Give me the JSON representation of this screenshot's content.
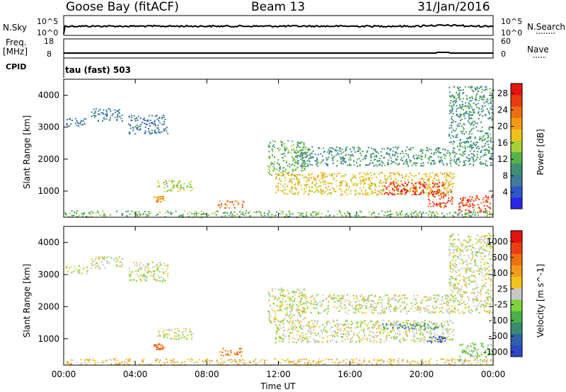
{
  "header": {
    "station": "Goose Bay (fitACF)",
    "beam": "Beam 13",
    "date": "31/Jan/2016"
  },
  "top_panels": {
    "nsky_label": "N.Sky",
    "nsky_ticks": [
      "10^5",
      "10^0"
    ],
    "nsearch_label": "N.Search",
    "nsearch_ticks": [
      "10^5",
      "10^0"
    ],
    "freq_label": "Freq.",
    "freq_unit": "[MHz]",
    "freq_ticks": [
      "18",
      "8"
    ],
    "nave_label": "Nave",
    "nave_ticks": [
      "60",
      "0"
    ],
    "cpid_label": "CPID",
    "cpid_value": "tau (fast) 503"
  },
  "chart_data": [
    {
      "type": "heatmap",
      "title": "",
      "ylabel": "Slant Range [km]",
      "xlabel": "",
      "ylim": [
        180,
        4500
      ],
      "yticks": [
        1000,
        2000,
        3000,
        4000
      ],
      "xlim": [
        0,
        24
      ],
      "colorbar": {
        "label": "Power [dB]",
        "ticks": [
          "4",
          "8",
          "12",
          "16",
          "20",
          "24",
          "28"
        ],
        "colors": [
          "#2b27e8",
          "#2f56c8",
          "#3d7d9a",
          "#3f9070",
          "#57b24b",
          "#a7cf37",
          "#f1c21b",
          "#f19b15",
          "#ef6d12",
          "#ea3a10",
          "#e4140e"
        ]
      },
      "scatter_regions": [
        {
          "t": [
            0.1,
            1.3
          ],
          "r": [
            3050,
            3300
          ],
          "level": 2
        },
        {
          "t": [
            1.5,
            3.3
          ],
          "r": [
            3200,
            3600
          ],
          "level": 2
        },
        {
          "t": [
            3.6,
            5.8
          ],
          "r": [
            2800,
            3400
          ],
          "level": 2
        },
        {
          "t": [
            5.2,
            7.2
          ],
          "r": [
            1000,
            1350
          ],
          "level": 5
        },
        {
          "t": [
            5.0,
            5.6
          ],
          "r": [
            680,
            860
          ],
          "level": 7
        },
        {
          "t": [
            8.6,
            10.1
          ],
          "r": [
            480,
            720
          ],
          "level": 8
        },
        {
          "t": [
            11.4,
            13.5
          ],
          "r": [
            1500,
            2600
          ],
          "level": 4
        },
        {
          "t": [
            11.8,
            21.8
          ],
          "r": [
            900,
            1600
          ],
          "level": 6
        },
        {
          "t": [
            17.8,
            21.2
          ],
          "r": [
            900,
            1300
          ],
          "level": 10
        },
        {
          "t": [
            13.0,
            21.5
          ],
          "r": [
            1800,
            2400
          ],
          "level": 3
        },
        {
          "t": [
            20.3,
            21.8
          ],
          "r": [
            500,
            1000
          ],
          "level": 9
        },
        {
          "t": [
            21.5,
            24.0
          ],
          "r": [
            1800,
            4300
          ],
          "level": 3
        },
        {
          "t": [
            22.0,
            24.0
          ],
          "r": [
            300,
            900
          ],
          "level": 9
        },
        {
          "t": [
            0.0,
            24.0
          ],
          "r": [
            200,
            400
          ],
          "level": 4
        }
      ],
      "xticks": [
        "00:00",
        "04:00",
        "08:00",
        "12:00",
        "16:00",
        "20:00",
        "00:00"
      ]
    },
    {
      "type": "heatmap",
      "title": "",
      "ylabel": "Slant Range [km]",
      "xlabel": "Time UT",
      "ylim": [
        180,
        4500
      ],
      "yticks": [
        1000,
        2000,
        3000,
        4000
      ],
      "xlim": [
        0,
        24
      ],
      "colorbar": {
        "label": "Velocity [m s^-1]",
        "ticks": [
          "1000",
          "500",
          "100",
          "25",
          "-25",
          "-100",
          "-500",
          "-1000"
        ],
        "colors": [
          "#2f46c8",
          "#2d62a8",
          "#3a8a72",
          "#48b046",
          "#7fd23a",
          "#c8c8c8",
          "#f2c21e",
          "#f29a1a",
          "#ef6f14",
          "#ea3e10",
          "#e4120e"
        ]
      },
      "scatter_regions": [
        {
          "t": [
            0.1,
            1.3
          ],
          "r": [
            3050,
            3300
          ],
          "level": 5
        },
        {
          "t": [
            1.5,
            3.3
          ],
          "r": [
            3200,
            3600
          ],
          "level": 5
        },
        {
          "t": [
            3.6,
            5.8
          ],
          "r": [
            2800,
            3400
          ],
          "level": 5
        },
        {
          "t": [
            5.2,
            7.2
          ],
          "r": [
            1000,
            1350
          ],
          "level": 5
        },
        {
          "t": [
            5.0,
            5.6
          ],
          "r": [
            680,
            860
          ],
          "level": 8
        },
        {
          "t": [
            8.6,
            10.1
          ],
          "r": [
            480,
            720
          ],
          "level": 8
        },
        {
          "t": [
            11.4,
            13.5
          ],
          "r": [
            1500,
            2600
          ],
          "level": 5
        },
        {
          "t": [
            11.8,
            21.8
          ],
          "r": [
            900,
            1600
          ],
          "level": 5
        },
        {
          "t": [
            17.8,
            21.2
          ],
          "r": [
            1300,
            1500
          ],
          "level": 2
        },
        {
          "t": [
            13.0,
            21.5
          ],
          "r": [
            1800,
            2400
          ],
          "level": 5
        },
        {
          "t": [
            20.3,
            21.3
          ],
          "r": [
            900,
            1100
          ],
          "level": 0
        },
        {
          "t": [
            21.5,
            24.0
          ],
          "r": [
            1800,
            4300
          ],
          "level": 5
        },
        {
          "t": [
            22.0,
            24.0
          ],
          "r": [
            300,
            900
          ],
          "level": 4
        },
        {
          "t": [
            0.0,
            24.0
          ],
          "r": [
            200,
            400
          ],
          "level": 6
        }
      ],
      "xticks": [
        "00:00",
        "04:00",
        "08:00",
        "12:00",
        "16:00",
        "20:00",
        "00:00"
      ]
    }
  ]
}
